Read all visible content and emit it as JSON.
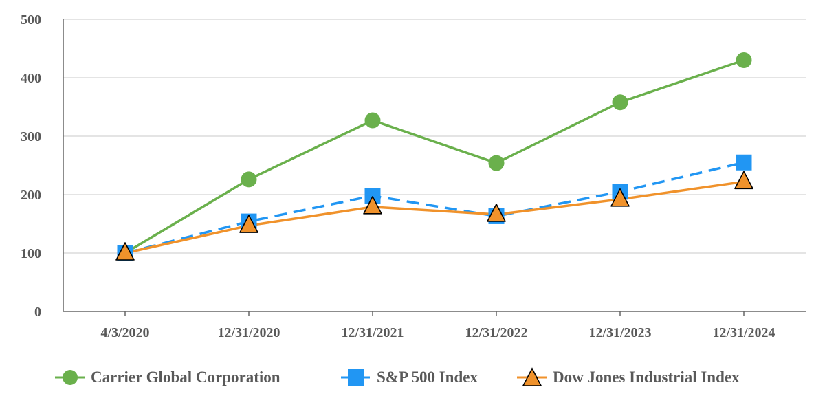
{
  "chart_data": {
    "type": "line",
    "categories": [
      "4/3/2020",
      "12/31/2020",
      "12/31/2021",
      "12/31/2022",
      "12/31/2023",
      "12/31/2024"
    ],
    "ylim": [
      0,
      500
    ],
    "yticks": [
      0,
      100,
      200,
      300,
      400,
      500
    ],
    "grid": true,
    "legend_position": "bottom",
    "series": [
      {
        "name": "Carrier Global Corporation",
        "values": [
          100,
          226,
          327,
          254,
          358,
          430
        ],
        "color": "#6ab04c",
        "marker": "circle",
        "line_style": "solid"
      },
      {
        "name": "S&P 500 Index",
        "values": [
          100,
          154,
          198,
          163,
          205,
          255
        ],
        "color": "#2196f3",
        "marker": "square",
        "line_style": "dashed"
      },
      {
        "name": "Dow Jones Industrial Index",
        "values": [
          100,
          147,
          179,
          166,
          192,
          222
        ],
        "color": "#f0922b",
        "marker": "triangle",
        "line_style": "solid"
      }
    ]
  }
}
